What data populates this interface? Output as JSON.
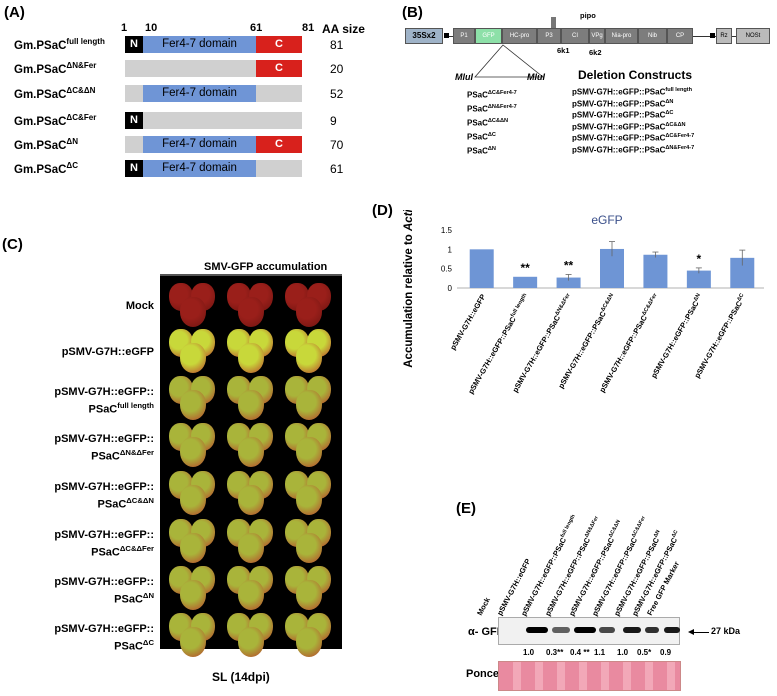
{
  "panel_a": {
    "label": "(A)",
    "positions": [
      "1",
      "10",
      "61",
      "81"
    ],
    "aa_size_header": "AA size",
    "rows": [
      {
        "name": "Gm.PSaC",
        "sup": "full length",
        "size": "81"
      },
      {
        "name": "Gm.PSaC",
        "sup": "ΔN&Fer",
        "size": "20"
      },
      {
        "name": "Gm.PSaC",
        "sup": "ΔC&ΔN",
        "size": "52"
      },
      {
        "name": "Gm.PSaC",
        "sup": "ΔC&Fer",
        "size": "9"
      },
      {
        "name": "Gm.PSaC",
        "sup": "ΔN",
        "size": "70"
      },
      {
        "name": "Gm.PSaC",
        "sup": "ΔC",
        "size": "61"
      }
    ],
    "n_label": "N",
    "fer_label": "Fer4-7 domain",
    "c_label": "C"
  },
  "panel_b": {
    "label": "(B)",
    "promoter": "35Sx2",
    "genes": [
      "P1",
      "GFP",
      "HC-pro",
      "P3",
      "CI",
      "VPg",
      "Nia-pro",
      "Nib",
      "CP"
    ],
    "pipo": "pipo",
    "k1": "6k1",
    "k2": "6k2",
    "rz": "Rz",
    "nost": "NOSt",
    "mlul": "MluI",
    "inserts": [
      {
        "name": "PSaC",
        "sup": "ΔC&Fer4-7"
      },
      {
        "name": "PSaC",
        "sup": "ΔN&Fer4-7"
      },
      {
        "name": "PSaC",
        "sup": "ΔC&ΔN"
      },
      {
        "name": "PSaC",
        "sup": "ΔC"
      },
      {
        "name": "PSaC",
        "sup": "ΔN"
      }
    ],
    "deletion_title": "Deletion Constructs",
    "constructs": [
      {
        "name": "pSMV-G7H::eGFP::PSaC",
        "sup": "full length"
      },
      {
        "name": "pSMV-G7H::eGFP::PSaC",
        "sup": "ΔN"
      },
      {
        "name": "pSMV-G7H::eGFP::PSaC",
        "sup": "ΔC"
      },
      {
        "name": "pSMV-G7H::eGFP::PSaC",
        "sup": "ΔC&ΔN"
      },
      {
        "name": "pSMV-G7H::eGFP::PSaC",
        "sup": "ΔC&Fer4-7"
      },
      {
        "name": "pSMV-G7H::eGFP::PSaC",
        "sup": "ΔN&Fer4-7"
      }
    ]
  },
  "panel_c": {
    "label": "(C)",
    "title": "SMV-GFP accumulation",
    "rows": [
      {
        "line1": "Mock",
        "line2": "",
        "sup": ""
      },
      {
        "line1": "pSMV-G7H::eGFP",
        "line2": "",
        "sup": ""
      },
      {
        "line1": "pSMV-G7H::eGFP::",
        "line2": "PSaC",
        "sup": "full length"
      },
      {
        "line1": "pSMV-G7H::eGFP::",
        "line2": "PSaC",
        "sup": "ΔN&ΔFer"
      },
      {
        "line1": "pSMV-G7H::eGFP::",
        "line2": "PSaC",
        "sup": "ΔC&ΔN"
      },
      {
        "line1": "pSMV-G7H::eGFP::",
        "line2": "PSaC",
        "sup": "ΔC&ΔFer"
      },
      {
        "line1": "pSMV-G7H::eGFP::",
        "line2": "PSaC",
        "sup": "ΔN"
      },
      {
        "line1": "pSMV-G7H::eGFP::",
        "line2": "PSaC",
        "sup": "ΔC"
      }
    ],
    "footer": "SL (14dpi)"
  },
  "panel_d": {
    "label": "(D)"
  },
  "chart_data": {
    "type": "bar",
    "title": "eGFP",
    "ylabel_prefix": "Accumulation relative to ",
    "ylabel_italic": "Actin",
    "ylim": [
      0,
      1.5
    ],
    "yticks": [
      "0",
      "0.5",
      "1",
      "1.5"
    ],
    "categories": [
      "pSMV-G7H::eGFP",
      "pSMV-G7H::eGFP::PSaC full length",
      "pSMV-G7H::eGFP::PSaC ΔN&ΔFer",
      "pSMV-G7H::eGFP::PSaC ΔC&ΔN",
      "pSMV-G7H::eGFP::PSaC ΔC&ΔFer",
      "pSMV-G7H::eGFP::PSaC ΔN",
      "pSMV-G7H::eGFP::PSaC ΔC"
    ],
    "category_labels": [
      {
        "name": "pSMV-G7H::eGFP",
        "sup": ""
      },
      {
        "name": "pSMV-G7H::eGFP::PSaC",
        "sup": "full length"
      },
      {
        "name": "pSMV-G7H::eGFP::PSaC",
        "sup": "ΔN&ΔFer"
      },
      {
        "name": "pSMV-G7H::eGFP::PSaC",
        "sup": "ΔC&ΔN"
      },
      {
        "name": "pSMV-G7H::eGFP::PSaC",
        "sup": "ΔC&ΔFer"
      },
      {
        "name": "pSMV-G7H::eGFP::PSaC",
        "sup": "ΔN"
      },
      {
        "name": "pSMV-G7H::eGFP::PSaC",
        "sup": "ΔC"
      }
    ],
    "values": [
      1.0,
      0.29,
      0.27,
      1.01,
      0.86,
      0.45,
      0.78
    ],
    "errors": [
      0,
      0,
      0.08,
      0.19,
      0.07,
      0.07,
      0.2
    ],
    "significance": [
      "",
      "**",
      "**",
      "",
      "",
      "*",
      ""
    ],
    "bar_color": "#6e95d5"
  },
  "panel_e": {
    "label": "(E)",
    "lanes": [
      {
        "name": "Mock",
        "sup": ""
      },
      {
        "name": "pSMV-G7H::eGFP",
        "sup": ""
      },
      {
        "name": "pSMV-G7H::eGFP::PSaC",
        "sup": "full length"
      },
      {
        "name": "pSMV-G7H::eGFP::PSaC",
        "sup": "ΔN&ΔFer"
      },
      {
        "name": "pSMV-G7H::eGFP::PSaC",
        "sup": "ΔC&ΔN"
      },
      {
        "name": "pSMV-G7H::eGFP::PSaC",
        "sup": "ΔC&ΔFer"
      },
      {
        "name": "pSMV-G7H::eGFP::PSaC",
        "sup": "ΔN"
      },
      {
        "name": "pSMV-G7H::eGFP::PSaC",
        "sup": "ΔC"
      },
      {
        "name": "Free GFP Marker",
        "sup": ""
      }
    ],
    "antibody": "α- GFP",
    "marker": "27 kDa",
    "quant": [
      "1.0",
      "0.3**",
      "0.4 **",
      "1.1",
      "1.0",
      "0.5*",
      "0.9"
    ],
    "loading": "Ponceau- S"
  }
}
